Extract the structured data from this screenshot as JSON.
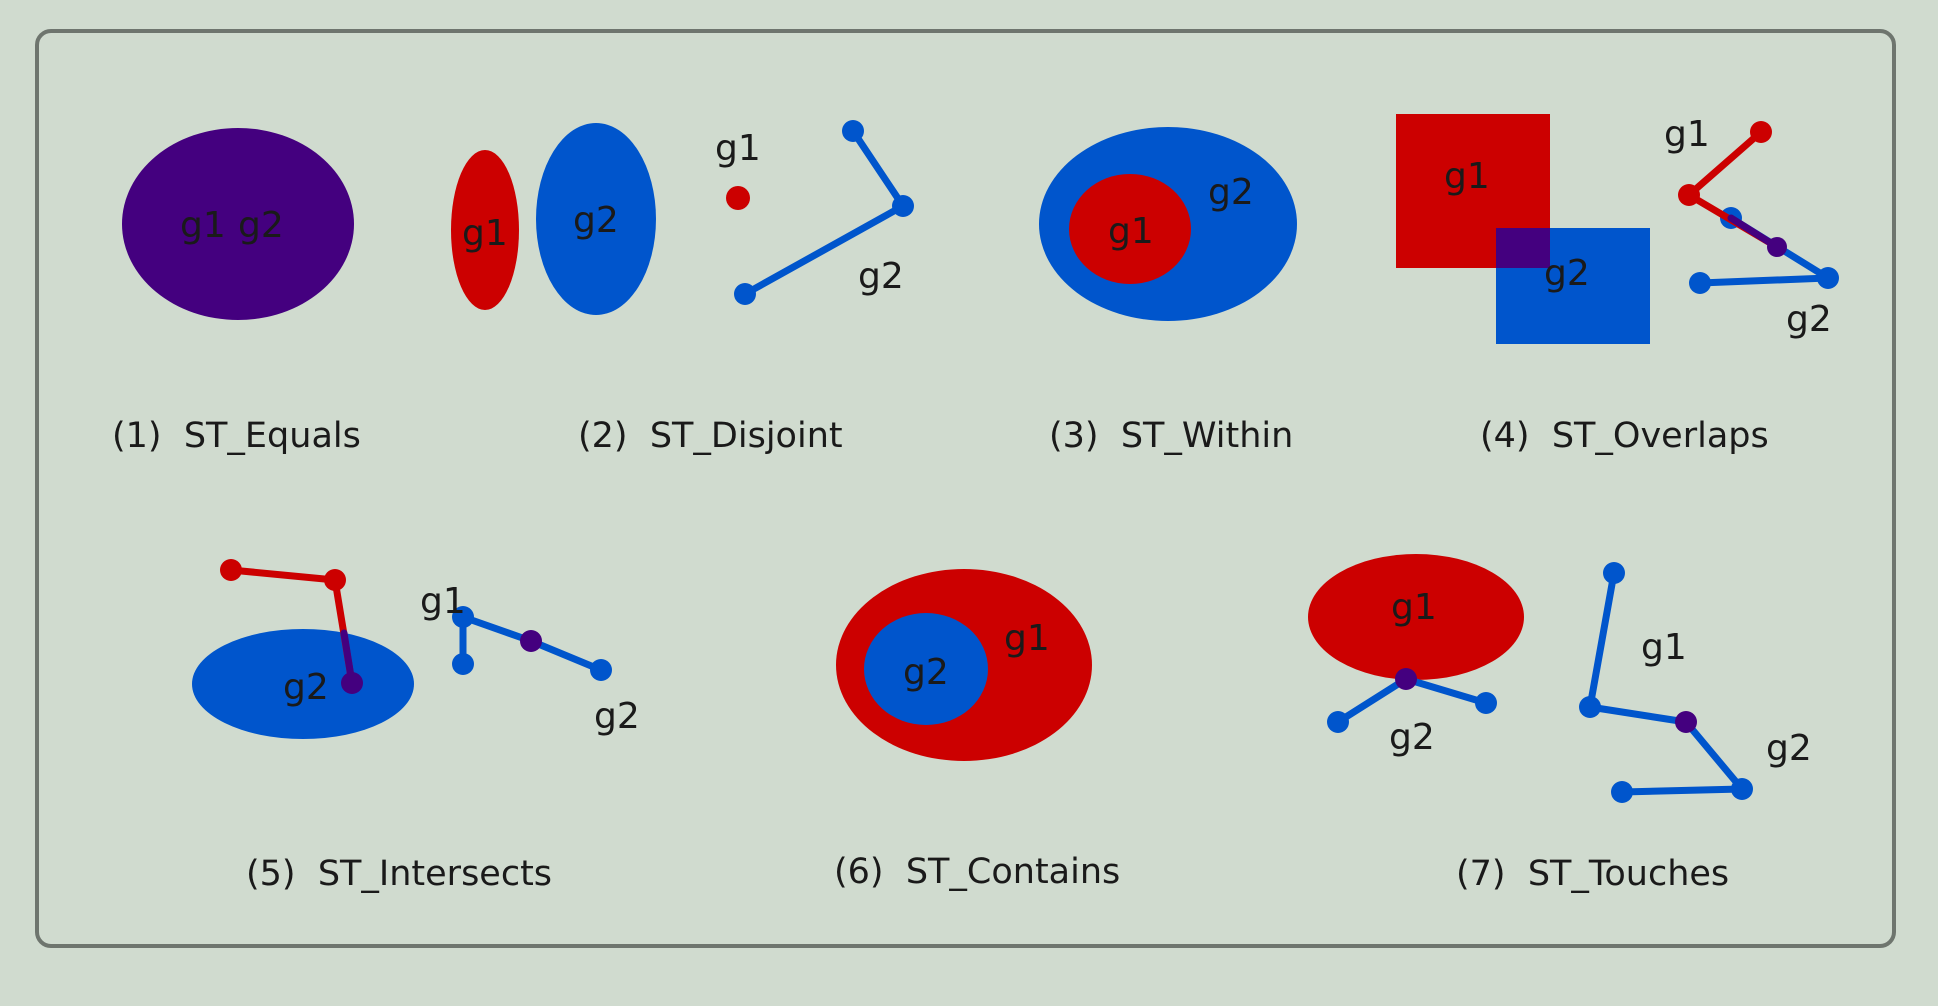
{
  "colors": {
    "background": "#d0dbcf",
    "frame": "#6e756e",
    "g1": "#cc0000",
    "g2": "#0055cc",
    "overlap": "#44007f",
    "label_text": "#1a1a1a"
  },
  "geometry_labels": {
    "g1": "g1",
    "g2": "g2"
  },
  "panels": [
    {
      "id": "equals",
      "caption": "(1)  ST_Equals"
    },
    {
      "id": "disjoint",
      "caption": "(2)  ST_Disjoint"
    },
    {
      "id": "within",
      "caption": "(3)  ST_Within"
    },
    {
      "id": "overlaps",
      "caption": "(4)  ST_Overlaps"
    },
    {
      "id": "intersects",
      "caption": "(5)  ST_Intersects"
    },
    {
      "id": "contains",
      "caption": "(6)  ST_Contains"
    },
    {
      "id": "touches",
      "caption": "(7)  ST_Touches"
    }
  ]
}
